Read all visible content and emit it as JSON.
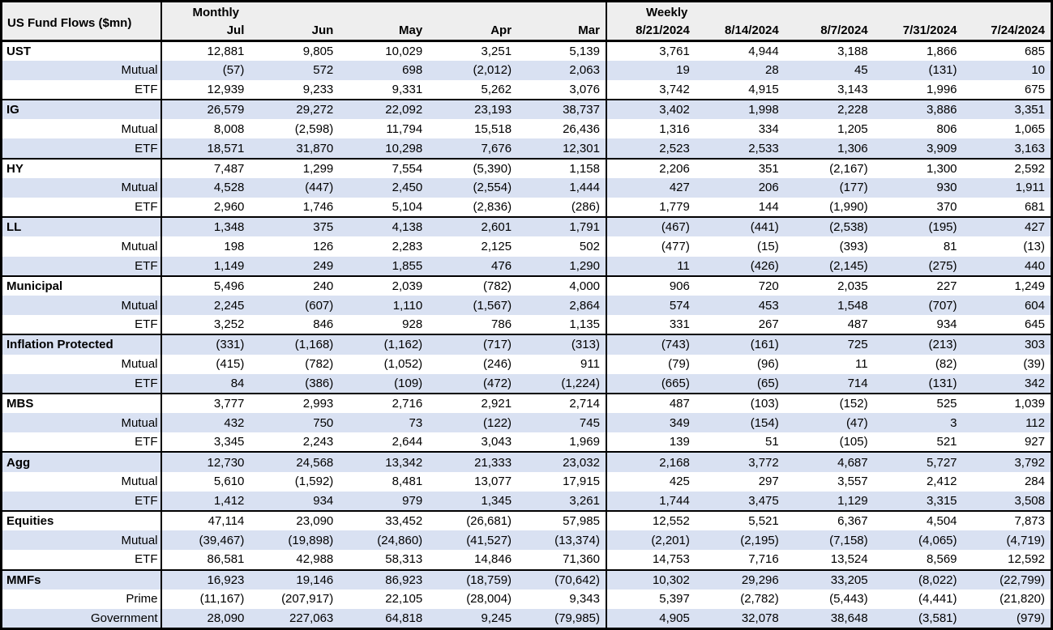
{
  "colors": {
    "band": "#d9e1f2",
    "header_bg": "#eeeeee",
    "border": "#000000"
  },
  "chart_data": {
    "type": "table",
    "title": "US Fund Flows ($mn)",
    "sections": {
      "monthly": "Monthly",
      "weekly": "Weekly"
    },
    "columns": {
      "monthly": [
        "Jul",
        "Jun",
        "May",
        "Apr",
        "Mar"
      ],
      "weekly": [
        "8/21/2024",
        "8/14/2024",
        "8/7/2024",
        "7/31/2024",
        "7/24/2024"
      ]
    },
    "rows": [
      {
        "label": "UST",
        "style": "group",
        "values": [
          "12,881",
          "9,805",
          "10,029",
          "3,251",
          "5,139",
          "3,761",
          "4,944",
          "3,188",
          "1,866",
          "685"
        ]
      },
      {
        "label": "Mutual",
        "style": "sub",
        "values": [
          "(57)",
          "572",
          "698",
          "(2,012)",
          "2,063",
          "19",
          "28",
          "45",
          "(131)",
          "10"
        ]
      },
      {
        "label": "ETF",
        "style": "sub",
        "values": [
          "12,939",
          "9,233",
          "9,331",
          "5,262",
          "3,076",
          "3,742",
          "4,915",
          "3,143",
          "1,996",
          "675"
        ]
      },
      {
        "label": "IG",
        "style": "group",
        "values": [
          "26,579",
          "29,272",
          "22,092",
          "23,193",
          "38,737",
          "3,402",
          "1,998",
          "2,228",
          "3,886",
          "3,351"
        ]
      },
      {
        "label": "Mutual",
        "style": "sub",
        "values": [
          "8,008",
          "(2,598)",
          "11,794",
          "15,518",
          "26,436",
          "1,316",
          "334",
          "1,205",
          "806",
          "1,065"
        ]
      },
      {
        "label": "ETF",
        "style": "sub",
        "values": [
          "18,571",
          "31,870",
          "10,298",
          "7,676",
          "12,301",
          "2,523",
          "2,533",
          "1,306",
          "3,909",
          "3,163"
        ]
      },
      {
        "label": "HY",
        "style": "group",
        "values": [
          "7,487",
          "1,299",
          "7,554",
          "(5,390)",
          "1,158",
          "2,206",
          "351",
          "(2,167)",
          "1,300",
          "2,592"
        ]
      },
      {
        "label": "Mutual",
        "style": "sub",
        "values": [
          "4,528",
          "(447)",
          "2,450",
          "(2,554)",
          "1,444",
          "427",
          "206",
          "(177)",
          "930",
          "1,911"
        ]
      },
      {
        "label": "ETF",
        "style": "sub",
        "values": [
          "2,960",
          "1,746",
          "5,104",
          "(2,836)",
          "(286)",
          "1,779",
          "144",
          "(1,990)",
          "370",
          "681"
        ]
      },
      {
        "label": "LL",
        "style": "group",
        "values": [
          "1,348",
          "375",
          "4,138",
          "2,601",
          "1,791",
          "(467)",
          "(441)",
          "(2,538)",
          "(195)",
          "427"
        ]
      },
      {
        "label": "Mutual",
        "style": "sub",
        "values": [
          "198",
          "126",
          "2,283",
          "2,125",
          "502",
          "(477)",
          "(15)",
          "(393)",
          "81",
          "(13)"
        ]
      },
      {
        "label": "ETF",
        "style": "sub",
        "values": [
          "1,149",
          "249",
          "1,855",
          "476",
          "1,290",
          "11",
          "(426)",
          "(2,145)",
          "(275)",
          "440"
        ]
      },
      {
        "label": "Municipal",
        "style": "group",
        "values": [
          "5,496",
          "240",
          "2,039",
          "(782)",
          "4,000",
          "906",
          "720",
          "2,035",
          "227",
          "1,249"
        ]
      },
      {
        "label": "Mutual",
        "style": "sub",
        "values": [
          "2,245",
          "(607)",
          "1,110",
          "(1,567)",
          "2,864",
          "574",
          "453",
          "1,548",
          "(707)",
          "604"
        ]
      },
      {
        "label": "ETF",
        "style": "sub",
        "values": [
          "3,252",
          "846",
          "928",
          "786",
          "1,135",
          "331",
          "267",
          "487",
          "934",
          "645"
        ]
      },
      {
        "label": "Inflation Protected",
        "style": "group",
        "values": [
          "(331)",
          "(1,168)",
          "(1,162)",
          "(717)",
          "(313)",
          "(743)",
          "(161)",
          "725",
          "(213)",
          "303"
        ]
      },
      {
        "label": "Mutual",
        "style": "sub",
        "values": [
          "(415)",
          "(782)",
          "(1,052)",
          "(246)",
          "911",
          "(79)",
          "(96)",
          "11",
          "(82)",
          "(39)"
        ]
      },
      {
        "label": "ETF",
        "style": "sub",
        "values": [
          "84",
          "(386)",
          "(109)",
          "(472)",
          "(1,224)",
          "(665)",
          "(65)",
          "714",
          "(131)",
          "342"
        ]
      },
      {
        "label": "MBS",
        "style": "group",
        "values": [
          "3,777",
          "2,993",
          "2,716",
          "2,921",
          "2,714",
          "487",
          "(103)",
          "(152)",
          "525",
          "1,039"
        ]
      },
      {
        "label": "Mutual",
        "style": "sub",
        "values": [
          "432",
          "750",
          "73",
          "(122)",
          "745",
          "349",
          "(154)",
          "(47)",
          "3",
          "112"
        ]
      },
      {
        "label": "ETF",
        "style": "sub",
        "values": [
          "3,345",
          "2,243",
          "2,644",
          "3,043",
          "1,969",
          "139",
          "51",
          "(105)",
          "521",
          "927"
        ]
      },
      {
        "label": "Agg",
        "style": "group",
        "values": [
          "12,730",
          "24,568",
          "13,342",
          "21,333",
          "23,032",
          "2,168",
          "3,772",
          "4,687",
          "5,727",
          "3,792"
        ]
      },
      {
        "label": "Mutual",
        "style": "sub",
        "values": [
          "5,610",
          "(1,592)",
          "8,481",
          "13,077",
          "17,915",
          "425",
          "297",
          "3,557",
          "2,412",
          "284"
        ]
      },
      {
        "label": "ETF",
        "style": "sub",
        "values": [
          "1,412",
          "934",
          "979",
          "1,345",
          "3,261",
          "1,744",
          "3,475",
          "1,129",
          "3,315",
          "3,508"
        ]
      },
      {
        "label": "Equities",
        "style": "group",
        "values": [
          "47,114",
          "23,090",
          "33,452",
          "(26,681)",
          "57,985",
          "12,552",
          "5,521",
          "6,367",
          "4,504",
          "7,873"
        ]
      },
      {
        "label": "Mutual",
        "style": "sub",
        "values": [
          "(39,467)",
          "(19,898)",
          "(24,860)",
          "(41,527)",
          "(13,374)",
          "(2,201)",
          "(2,195)",
          "(7,158)",
          "(4,065)",
          "(4,719)"
        ]
      },
      {
        "label": "ETF",
        "style": "sub",
        "values": [
          "86,581",
          "42,988",
          "58,313",
          "14,846",
          "71,360",
          "14,753",
          "7,716",
          "13,524",
          "8,569",
          "12,592"
        ]
      },
      {
        "label": "MMFs",
        "style": "group",
        "values": [
          "16,923",
          "19,146",
          "86,923",
          "(18,759)",
          "(70,642)",
          "10,302",
          "29,296",
          "33,205",
          "(8,022)",
          "(22,799)"
        ]
      },
      {
        "label": "Prime",
        "style": "sub",
        "values": [
          "(11,167)",
          "(207,917)",
          "22,105",
          "(28,004)",
          "9,343",
          "5,397",
          "(2,782)",
          "(5,443)",
          "(4,441)",
          "(21,820)"
        ]
      },
      {
        "label": "Government",
        "style": "sub",
        "values": [
          "28,090",
          "227,063",
          "64,818",
          "9,245",
          "(79,985)",
          "4,905",
          "32,078",
          "38,648",
          "(3,581)",
          "(979)"
        ]
      }
    ]
  }
}
